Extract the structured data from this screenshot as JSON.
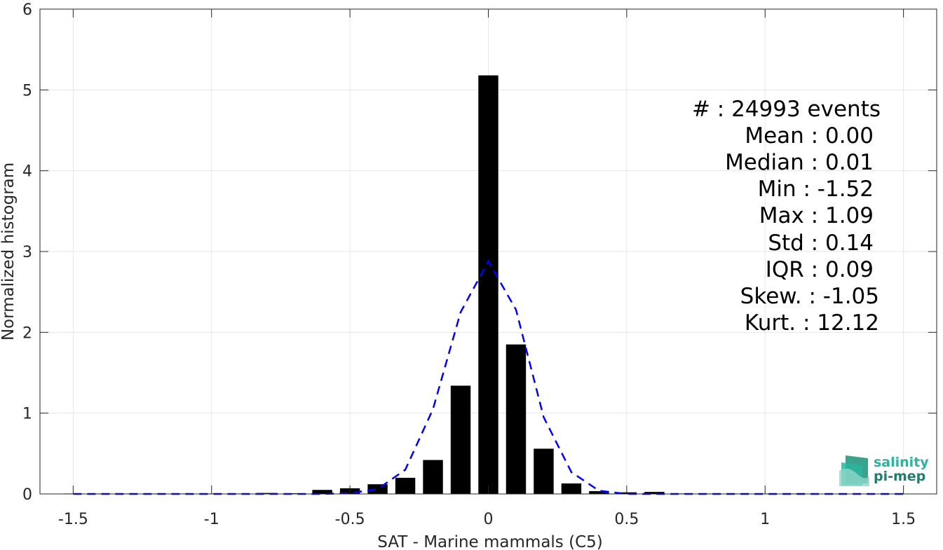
{
  "chart_data": {
    "type": "bar",
    "xlabel": "SAT - Marine mammals (C5)",
    "ylabel": "Normalized histogram",
    "xlim": [
      -1.62,
      1.62
    ],
    "ylim": [
      0,
      6
    ],
    "xticks": [
      -1.5,
      -1,
      -0.5,
      0,
      0.5,
      1,
      1.5
    ],
    "xtick_labels": [
      "-1.5",
      "-1",
      "-0.5",
      "0",
      "0.5",
      "1",
      "1.5"
    ],
    "yticks": [
      0,
      1,
      2,
      3,
      4,
      5,
      6
    ],
    "ytick_labels": [
      "0",
      "1",
      "2",
      "3",
      "4",
      "5",
      "6"
    ],
    "grid": true,
    "bar_width": 0.072,
    "bars": {
      "x": [
        -1.5,
        -1.4,
        -1.3,
        -1.2,
        -1.1,
        -1.0,
        -0.9,
        -0.8,
        -0.7,
        -0.6,
        -0.5,
        -0.4,
        -0.3,
        -0.2,
        -0.1,
        0.0,
        0.1,
        0.2,
        0.3,
        0.4,
        0.5,
        0.6,
        0.7,
        0.8,
        0.9,
        1.0,
        1.1
      ],
      "values": [
        0.002,
        0.0,
        0.0,
        0.0,
        0.0,
        0.002,
        0.003,
        0.012,
        0.008,
        0.05,
        0.07,
        0.12,
        0.2,
        0.42,
        1.34,
        5.18,
        1.85,
        0.56,
        0.13,
        0.035,
        0.02,
        0.025,
        0.006,
        0.004,
        0.002,
        0.001,
        0.002
      ]
    },
    "fit_curve": {
      "style": "dashed",
      "color": "#0000ff",
      "x": [
        -1.5,
        -1.4,
        -1.3,
        -1.2,
        -1.1,
        -1.0,
        -0.9,
        -0.8,
        -0.7,
        -0.6,
        -0.5,
        -0.4,
        -0.3,
        -0.2,
        -0.1,
        0.0,
        0.1,
        0.2,
        0.3,
        0.4,
        0.5,
        0.6,
        0.7,
        0.8,
        0.9,
        1.0,
        1.1,
        1.2,
        1.3,
        1.4,
        1.5
      ],
      "y": [
        0.0,
        0.0,
        0.0,
        0.0,
        0.0,
        0.0,
        0.0,
        0.0,
        0.0,
        0.0,
        0.01,
        0.06,
        0.3,
        1.05,
        2.25,
        2.88,
        2.28,
        0.95,
        0.27,
        0.04,
        0.0,
        0.0,
        0.0,
        0.0,
        0.0,
        0.0,
        0.0,
        0.0,
        0.0,
        0.0,
        0.0
      ]
    },
    "annotations": [
      "#  : 24993 events",
      "Mean : 0.00",
      "Median : 0.01",
      "Min : -1.52",
      "Max : 1.09",
      "Std : 0.14",
      "IQR : 0.09",
      "Skew. : -1.05",
      "Kurt. : 12.12"
    ],
    "colors": {
      "bars": "#000000",
      "fit": "#0000ff",
      "grid": "#e6e6e6",
      "axis": "#262626"
    }
  },
  "logo": {
    "line1": "salinity",
    "line2": "pi-mep",
    "color1": "#2bb5a0",
    "color2": "#1f7d6e"
  }
}
